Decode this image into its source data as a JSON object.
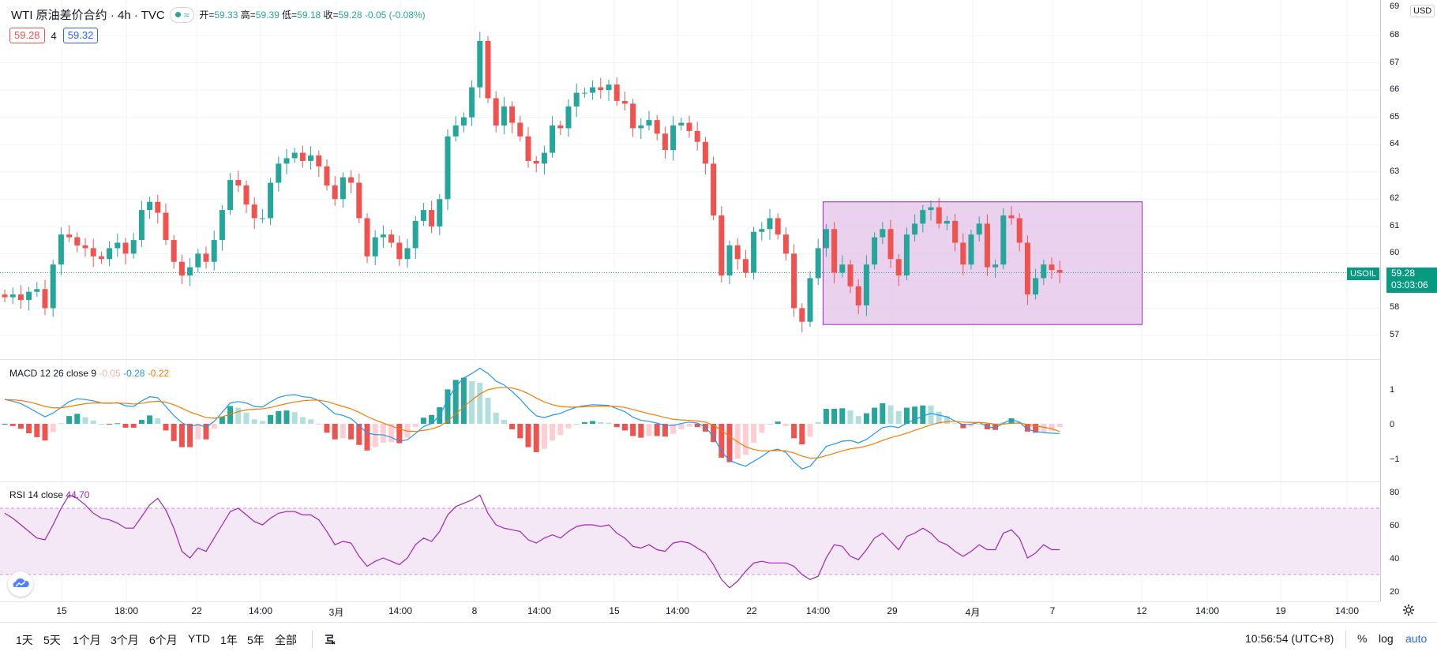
{
  "header": {
    "title": "WTI 原油差价合约 · 4h · TVC",
    "ohlc": [
      {
        "label": "开",
        "value": "59.33"
      },
      {
        "label": "高",
        "value": "59.39"
      },
      {
        "label": "低",
        "value": "59.18"
      },
      {
        "label": "收",
        "value": "59.28"
      }
    ],
    "change": "-0.05 (-0.08%)",
    "bid": "59.28",
    "spread": "4",
    "ask": "59.32",
    "currency": "USD"
  },
  "price_tag": {
    "symbol": "USOIL",
    "price": "59.28",
    "countdown": "03:03:06"
  },
  "colors": {
    "up": "#26a69a",
    "down": "#ef5350",
    "macd": "#2196f3",
    "signal": "#f57c00",
    "rsi": "#9c27b0",
    "box_fill": "#e1bee7",
    "box_stroke": "#9c27b0"
  },
  "price_axis": {
    "labels": [
      "68",
      "67",
      "66",
      "65",
      "64",
      "63",
      "62",
      "61",
      "60",
      "58",
      "57"
    ],
    "top_label": "69"
  },
  "macd": {
    "legend_name": "MACD 12 26 close 9",
    "hist": "-0.05",
    "macd": "-0.28",
    "signal": "-0.22",
    "axis": [
      "1",
      "0",
      "−1"
    ]
  },
  "rsi": {
    "legend_name": "RSI 14 close",
    "value": "44.70",
    "axis": [
      "80",
      "60",
      "40",
      "20"
    ]
  },
  "time_axis": [
    "15",
    "18:00",
    "22",
    "14:00",
    "3月",
    "14:00",
    "8",
    "14:00",
    "15",
    "14:00",
    "22",
    "14:00",
    "29",
    "4月",
    "7",
    "12",
    "14:00",
    "19",
    "14:00"
  ],
  "timeframes": [
    "1天",
    "5天",
    "1个月",
    "3个月",
    "6个月",
    "YTD",
    "1年",
    "5年",
    "全部"
  ],
  "status": {
    "clock": "10:56:54 (UTC+8)",
    "percent": "%",
    "log": "log",
    "auto": "auto"
  },
  "chart_data": {
    "type": "candlestick",
    "closes": [
      58.4,
      58.5,
      58.3,
      58.6,
      58.7,
      58.0,
      59.6,
      60.7,
      60.6,
      60.3,
      60.2,
      59.9,
      59.8,
      60.2,
      60.4,
      60.0,
      60.5,
      61.6,
      61.9,
      61.5,
      60.5,
      59.7,
      59.2,
      59.5,
      60.0,
      59.7,
      60.5,
      61.6,
      62.7,
      62.5,
      61.8,
      61.3,
      61.3,
      62.6,
      63.3,
      63.5,
      63.7,
      63.4,
      63.6,
      63.2,
      62.5,
      62.0,
      62.8,
      62.6,
      61.3,
      59.9,
      60.6,
      60.7,
      60.4,
      59.8,
      60.2,
      61.2,
      61.6,
      61.0,
      62.0,
      64.3,
      64.7,
      65.0,
      66.1,
      67.8,
      65.7,
      64.7,
      65.4,
      64.8,
      64.3,
      63.4,
      63.3,
      63.7,
      64.7,
      64.6,
      65.4,
      65.9,
      65.9,
      66.1,
      66.0,
      66.2,
      65.6,
      65.5,
      64.6,
      64.7,
      64.9,
      64.4,
      63.8,
      64.7,
      64.8,
      64.5,
      64.1,
      63.3,
      61.4,
      59.2,
      60.3,
      59.8,
      59.3,
      60.8,
      60.9,
      61.3,
      60.7,
      60.0,
      58.0,
      57.5,
      59.1,
      60.2,
      60.9,
      59.3,
      59.6,
      58.8,
      58.1,
      59.6,
      60.6,
      60.9,
      59.8,
      59.2,
      60.7,
      61.1,
      61.6,
      61.7,
      61.1,
      61.2,
      60.4,
      59.6,
      60.7,
      61.1,
      59.5,
      59.6,
      61.4,
      61.3,
      60.4,
      58.5,
      59.1,
      59.6,
      59.4,
      59.3
    ],
    "macd": [
      0.7,
      0.65,
      0.58,
      0.46,
      0.33,
      0.2,
      0.31,
      0.47,
      0.64,
      0.72,
      0.7,
      0.66,
      0.6,
      0.59,
      0.61,
      0.52,
      0.5,
      0.66,
      0.78,
      0.75,
      0.5,
      0.24,
      0.03,
      -0.08,
      -0.02,
      -0.1,
      0.07,
      0.33,
      0.6,
      0.64,
      0.6,
      0.5,
      0.48,
      0.63,
      0.76,
      0.82,
      0.84,
      0.78,
      0.76,
      0.67,
      0.48,
      0.29,
      0.24,
      0.15,
      -0.05,
      -0.27,
      -0.31,
      -0.32,
      -0.39,
      -0.5,
      -0.46,
      -0.28,
      -0.08,
      0.01,
      0.23,
      0.7,
      1.07,
      1.32,
      1.45,
      1.6,
      1.45,
      1.23,
      1.12,
      0.93,
      0.71,
      0.45,
      0.23,
      0.18,
      0.25,
      0.3,
      0.4,
      0.48,
      0.52,
      0.55,
      0.54,
      0.53,
      0.44,
      0.35,
      0.19,
      0.1,
      0.07,
      0.02,
      -0.05,
      -0.05,
      0.01,
      0.05,
      0.02,
      -0.09,
      -0.37,
      -0.8,
      -1.05,
      -1.15,
      -1.22,
      -1.08,
      -0.94,
      -0.78,
      -0.73,
      -0.82,
      -1.1,
      -1.3,
      -1.22,
      -0.95,
      -0.65,
      -0.58,
      -0.5,
      -0.48,
      -0.55,
      -0.45,
      -0.28,
      -0.11,
      -0.07,
      -0.11,
      0.02,
      0.12,
      0.22,
      0.3,
      0.25,
      0.2,
      0.08,
      -0.03,
      -0.01,
      0.04,
      -0.08,
      -0.12,
      0.02,
      0.12,
      0.05,
      -0.16,
      -0.22,
      -0.25,
      -0.27,
      -0.28
    ],
    "signal": [
      0.7,
      0.69,
      0.67,
      0.63,
      0.57,
      0.5,
      0.46,
      0.46,
      0.5,
      0.54,
      0.58,
      0.6,
      0.6,
      0.6,
      0.6,
      0.59,
      0.57,
      0.59,
      0.63,
      0.65,
      0.62,
      0.55,
      0.45,
      0.34,
      0.26,
      0.18,
      0.16,
      0.2,
      0.28,
      0.35,
      0.4,
      0.42,
      0.43,
      0.47,
      0.53,
      0.58,
      0.63,
      0.66,
      0.68,
      0.68,
      0.64,
      0.57,
      0.5,
      0.43,
      0.33,
      0.21,
      0.11,
      0.02,
      -0.06,
      -0.15,
      -0.21,
      -0.22,
      -0.19,
      -0.15,
      -0.07,
      0.08,
      0.28,
      0.49,
      0.68,
      0.86,
      0.98,
      1.03,
      1.05,
      1.03,
      0.97,
      0.87,
      0.74,
      0.63,
      0.55,
      0.5,
      0.48,
      0.48,
      0.49,
      0.5,
      0.51,
      0.51,
      0.5,
      0.47,
      0.41,
      0.35,
      0.29,
      0.24,
      0.18,
      0.13,
      0.11,
      0.1,
      0.08,
      0.05,
      -0.04,
      -0.19,
      -0.36,
      -0.52,
      -0.66,
      -0.74,
      -0.78,
      -0.78,
      -0.77,
      -0.78,
      -0.84,
      -0.93,
      -0.99,
      -0.98,
      -0.92,
      -0.85,
      -0.78,
      -0.72,
      -0.69,
      -0.64,
      -0.57,
      -0.48,
      -0.4,
      -0.34,
      -0.27,
      -0.19,
      -0.11,
      -0.03,
      0.03,
      0.06,
      0.07,
      0.05,
      0.04,
      0.04,
      0.02,
      -0.01,
      -0.01,
      0.02,
      0.02,
      -0.02,
      -0.06,
      -0.1,
      -0.14,
      -0.22
    ],
    "rsi": [
      67,
      64,
      60,
      56,
      52,
      51,
      60,
      70,
      78,
      76,
      72,
      67,
      64,
      63,
      61,
      58,
      58,
      65,
      72,
      76,
      69,
      58,
      44,
      40,
      46,
      44,
      52,
      60,
      68,
      70,
      66,
      62,
      60,
      64,
      67,
      68,
      68,
      66,
      66,
      63,
      56,
      48,
      50,
      49,
      41,
      35,
      38,
      40,
      38,
      36,
      40,
      48,
      52,
      50,
      56,
      66,
      71,
      73,
      75,
      78,
      67,
      60,
      58,
      57,
      56,
      51,
      49,
      52,
      54,
      52,
      56,
      59,
      60,
      60,
      59,
      60,
      55,
      52,
      47,
      46,
      48,
      45,
      44,
      49,
      50,
      49,
      46,
      43,
      36,
      27,
      22,
      26,
      32,
      37,
      38,
      37,
      37,
      37,
      35,
      30,
      27,
      29,
      40,
      48,
      47,
      41,
      39,
      45,
      52,
      55,
      50,
      45,
      53,
      55,
      58,
      55,
      50,
      48,
      44,
      41,
      44,
      48,
      45,
      45,
      55,
      57,
      52,
      40,
      43,
      48,
      45,
      45
    ],
    "box": {
      "from_bar": 102,
      "to_bar": 133,
      "high": 61.9,
      "low": 57.4
    },
    "ylim": [
      56.5,
      69
    ]
  }
}
